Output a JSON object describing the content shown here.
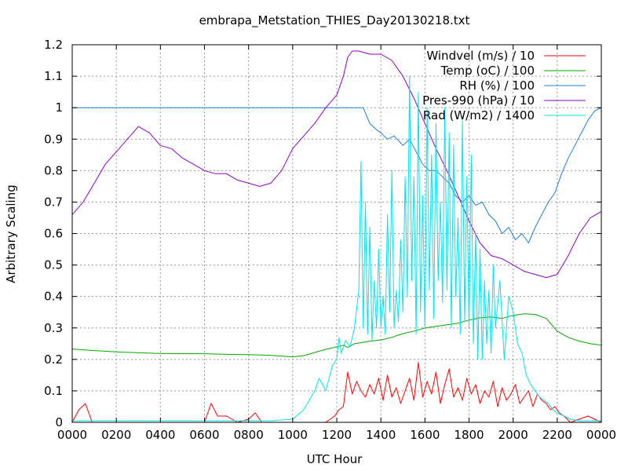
{
  "chart_data": {
    "type": "line",
    "title": "embrapa_Metstation_THIES_Day20130218.txt",
    "xlabel": "UTC Hour",
    "ylabel": "Arbitrary Scaling",
    "xlim": [
      0,
      24
    ],
    "ylim": [
      0,
      1.2
    ],
    "grid": true,
    "legend_position": "top-right",
    "x_ticks": [
      "0000",
      "0200",
      "0400",
      "0600",
      "0800",
      "1000",
      "1200",
      "1400",
      "1600",
      "1800",
      "2000",
      "2200",
      "0000"
    ],
    "y_ticks": [
      "0",
      "0.1",
      "0.2",
      "0.3",
      "0.4",
      "0.5",
      "0.6",
      "0.7",
      "0.8",
      "0.9",
      "1",
      "1.1",
      "1.2"
    ],
    "series": [
      {
        "name": "Windvel (m/s) / 10",
        "color": "#ff0000",
        "x": [
          0,
          0.3,
          0.6,
          0.9,
          1.2,
          1.5,
          2,
          2.5,
          3,
          3.5,
          4,
          4.5,
          5,
          5.5,
          6,
          6.3,
          6.6,
          7,
          7.5,
          8,
          8.3,
          8.6,
          9,
          9.5,
          10,
          10.5,
          11,
          11.5,
          11.9,
          12.1,
          12.3,
          12.5,
          12.7,
          12.9,
          13.1,
          13.3,
          13.5,
          13.7,
          13.9,
          14.1,
          14.3,
          14.5,
          14.7,
          14.9,
          15.1,
          15.3,
          15.5,
          15.7,
          15.9,
          16.1,
          16.3,
          16.5,
          16.7,
          16.9,
          17.1,
          17.3,
          17.5,
          17.7,
          17.9,
          18.1,
          18.3,
          18.5,
          18.7,
          18.9,
          19.1,
          19.3,
          19.5,
          19.7,
          19.9,
          20.1,
          20.3,
          20.5,
          20.7,
          20.9,
          21.1,
          21.3,
          21.5,
          21.7,
          21.9,
          22.1,
          22.3,
          22.6,
          23,
          23.4,
          23.7,
          24
        ],
        "y": [
          0,
          0.04,
          0.06,
          0,
          0,
          0,
          0,
          0,
          0,
          0,
          0,
          0,
          0,
          0,
          0,
          0.06,
          0.02,
          0.02,
          0,
          0.01,
          0.03,
          0,
          0,
          0,
          0,
          0,
          0,
          0,
          0.02,
          0.04,
          0.05,
          0.16,
          0.09,
          0.13,
          0.1,
          0.08,
          0.12,
          0.09,
          0.14,
          0.07,
          0.15,
          0.08,
          0.11,
          0.06,
          0.1,
          0.14,
          0.07,
          0.19,
          0.08,
          0.13,
          0.09,
          0.16,
          0.06,
          0.12,
          0.17,
          0.08,
          0.11,
          0.07,
          0.14,
          0.09,
          0.12,
          0.06,
          0.1,
          0.08,
          0.13,
          0.05,
          0.11,
          0.07,
          0.09,
          0.12,
          0.06,
          0.08,
          0.1,
          0.05,
          0.09,
          0.07,
          0.06,
          0.04,
          0.05,
          0.03,
          0.02,
          0,
          0.01,
          0.02,
          0.01,
          0
        ]
      },
      {
        "name": "Temp (oC) / 100",
        "color": "#00aa00",
        "x": [
          0,
          1,
          2,
          3,
          4,
          5,
          6,
          7,
          8,
          9,
          10,
          10.5,
          11,
          11.5,
          12,
          12.3,
          12.5,
          12.8,
          13,
          13.5,
          14,
          14.5,
          15,
          15.5,
          16,
          16.5,
          17,
          17.5,
          18,
          18.5,
          19,
          19.5,
          20,
          20.5,
          21,
          21.5,
          22,
          22.5,
          23,
          23.5,
          24
        ],
        "y": [
          0.233,
          0.228,
          0.224,
          0.221,
          0.219,
          0.218,
          0.218,
          0.216,
          0.215,
          0.213,
          0.208,
          0.212,
          0.222,
          0.232,
          0.24,
          0.245,
          0.238,
          0.25,
          0.252,
          0.258,
          0.262,
          0.27,
          0.282,
          0.29,
          0.3,
          0.305,
          0.31,
          0.315,
          0.325,
          0.332,
          0.335,
          0.33,
          0.34,
          0.345,
          0.343,
          0.33,
          0.29,
          0.27,
          0.258,
          0.25,
          0.245
        ]
      },
      {
        "name": "RH (%) / 100",
        "color": "#1a7fe0",
        "x": [
          0,
          2,
          4,
          6,
          8,
          10,
          12,
          13,
          13.2,
          13.5,
          13.8,
          14,
          14.3,
          14.6,
          15,
          15.3,
          15.6,
          15.9,
          16.2,
          16.5,
          16.8,
          17.1,
          17.4,
          17.7,
          18,
          18.3,
          18.6,
          18.9,
          19.2,
          19.5,
          19.8,
          20.1,
          20.4,
          20.7,
          21,
          21.3,
          21.6,
          21.9,
          22.2,
          22.5,
          22.8,
          23.1,
          23.4,
          23.7,
          24
        ],
        "y": [
          1,
          1,
          1,
          1,
          1,
          1,
          1,
          1,
          1,
          0.95,
          0.93,
          0.92,
          0.9,
          0.91,
          0.88,
          0.9,
          0.86,
          0.82,
          0.8,
          0.8,
          0.78,
          0.76,
          0.72,
          0.7,
          0.72,
          0.69,
          0.7,
          0.66,
          0.64,
          0.6,
          0.62,
          0.58,
          0.6,
          0.57,
          0.62,
          0.66,
          0.7,
          0.73,
          0.79,
          0.84,
          0.88,
          0.92,
          0.96,
          0.99,
          1
        ]
      },
      {
        "name": "Pres-990 (hPa) / 10",
        "color": "#9400d3",
        "x": [
          0,
          0.5,
          1,
          1.5,
          2,
          2.5,
          3,
          3.5,
          4,
          4.5,
          5,
          5.5,
          6,
          6.5,
          7,
          7.5,
          8,
          8.5,
          9,
          9.5,
          10,
          10.5,
          11,
          11.5,
          12,
          12.3,
          12.5,
          12.7,
          13,
          13.5,
          14,
          14.5,
          15,
          15.5,
          16,
          16.5,
          17,
          17.5,
          18,
          18.5,
          19,
          19.5,
          20,
          20.5,
          21,
          21.5,
          22,
          22.5,
          23,
          23.5,
          24
        ],
        "y": [
          0.66,
          0.7,
          0.76,
          0.82,
          0.86,
          0.9,
          0.94,
          0.92,
          0.88,
          0.87,
          0.84,
          0.82,
          0.8,
          0.79,
          0.79,
          0.77,
          0.76,
          0.75,
          0.76,
          0.8,
          0.87,
          0.91,
          0.95,
          1.0,
          1.04,
          1.1,
          1.16,
          1.18,
          1.18,
          1.17,
          1.17,
          1.15,
          1.1,
          1.03,
          0.95,
          0.87,
          0.8,
          0.72,
          0.64,
          0.57,
          0.53,
          0.52,
          0.5,
          0.48,
          0.47,
          0.46,
          0.47,
          0.53,
          0.6,
          0.65,
          0.67
        ]
      },
      {
        "name": "Rad (W/m2) / 1400",
        "color": "#00e5ee",
        "x": [
          0,
          2,
          4,
          6,
          8,
          9,
          10,
          10.5,
          11,
          11.2,
          11.5,
          11.8,
          12,
          12.1,
          12.2,
          12.4,
          12.6,
          12.8,
          13,
          13.1,
          13.2,
          13.3,
          13.4,
          13.5,
          13.6,
          13.7,
          13.8,
          13.9,
          14,
          14.1,
          14.2,
          14.3,
          14.4,
          14.5,
          14.6,
          14.7,
          14.8,
          14.9,
          15,
          15.1,
          15.2,
          15.3,
          15.4,
          15.5,
          15.6,
          15.7,
          15.8,
          15.9,
          16,
          16.1,
          16.2,
          16.3,
          16.4,
          16.5,
          16.6,
          16.7,
          16.8,
          16.9,
          17,
          17.1,
          17.2,
          17.3,
          17.4,
          17.5,
          17.6,
          17.7,
          17.8,
          17.9,
          18,
          18.1,
          18.2,
          18.3,
          18.4,
          18.5,
          18.6,
          18.7,
          18.8,
          18.9,
          19,
          19.1,
          19.2,
          19.4,
          19.6,
          19.8,
          20,
          20.2,
          20.4,
          20.6,
          20.8,
          21,
          21.2,
          21.4,
          21.6,
          21.8,
          22,
          22.3,
          22.6,
          23,
          24
        ],
        "y": [
          0.005,
          0.005,
          0.005,
          0.005,
          0.005,
          0.005,
          0.01,
          0.04,
          0.1,
          0.14,
          0.1,
          0.18,
          0.2,
          0.27,
          0.22,
          0.26,
          0.24,
          0.3,
          0.42,
          0.83,
          0.3,
          0.7,
          0.28,
          0.62,
          0.26,
          0.45,
          0.3,
          0.55,
          0.3,
          0.4,
          0.28,
          0.66,
          0.35,
          0.8,
          0.3,
          0.42,
          0.32,
          0.58,
          0.35,
          0.78,
          0.4,
          1.1,
          0.45,
          0.78,
          0.28,
          1.05,
          0.35,
          0.72,
          0.3,
          1.0,
          0.42,
          0.85,
          0.33,
          0.95,
          0.45,
          0.7,
          0.38,
          1.0,
          0.42,
          0.92,
          0.3,
          0.88,
          0.4,
          0.65,
          0.28,
          0.96,
          0.32,
          0.78,
          0.3,
          0.85,
          0.25,
          0.6,
          0.2,
          0.55,
          0.2,
          0.45,
          0.25,
          0.42,
          0.22,
          0.5,
          0.3,
          0.45,
          0.2,
          0.4,
          0.35,
          0.25,
          0.22,
          0.15,
          0.12,
          0.1,
          0.08,
          0.07,
          0.06,
          0.04,
          0.03,
          0.02,
          0.01,
          0.005,
          0.005
        ]
      }
    ]
  }
}
